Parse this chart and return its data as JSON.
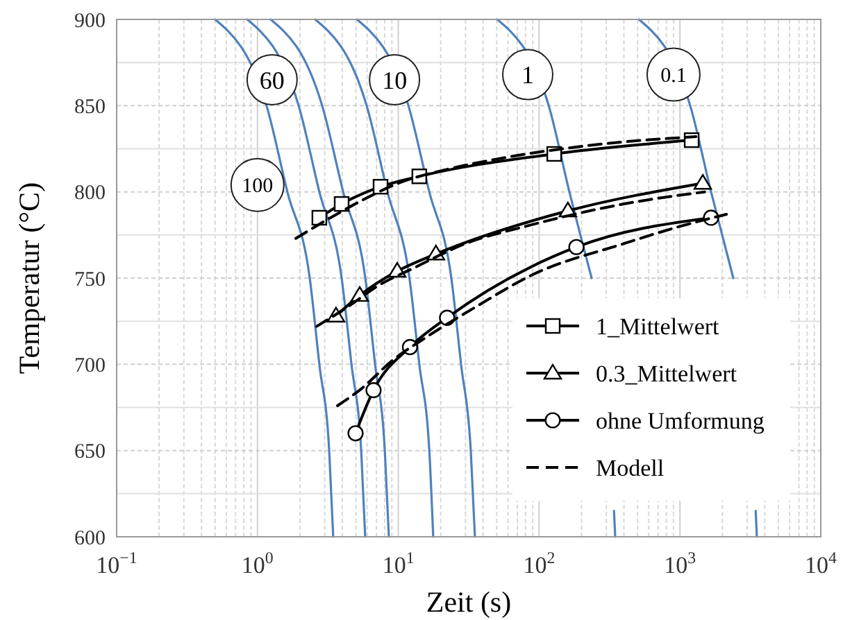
{
  "chart_data": {
    "type": "line",
    "xlabel": "Zeit (s)",
    "ylabel": "Temperatur (°C)",
    "log": "x",
    "xlim": [
      0.1,
      10000
    ],
    "ylim": [
      600,
      900
    ],
    "xticks": [
      {
        "value": 0.1,
        "label": "10$^{−1}$"
      },
      {
        "value": 1,
        "label": "10$^{0}$"
      },
      {
        "value": 10,
        "label": "10$^{1}$"
      },
      {
        "value": 100,
        "label": "10$^{2}$"
      },
      {
        "value": 1000,
        "label": "10$^{3}$"
      },
      {
        "value": 10000,
        "label": "10$^{4}$"
      }
    ],
    "yticks": [
      600,
      650,
      700,
      750,
      800,
      850,
      900
    ],
    "grid": true,
    "legend": "bottom right",
    "line_style": "solid",
    "marker": "none",
    "series": [
      {
        "color": "#4f81bd",
        "x": [
          0.5,
          1.16,
          1.63,
          2.35,
          2.75,
          3.23,
          3.45
        ],
        "values": [
          900,
          850,
          800,
          750,
          700,
          650,
          600
        ]
      },
      {
        "color": "#4f81bd",
        "x": [
          0.845,
          1.96,
          2.75,
          3.96,
          4.65,
          5.45,
          5.82
        ],
        "values": [
          900,
          850,
          800,
          750,
          700,
          650,
          600
        ]
      },
      {
        "color": "#4f81bd",
        "x": [
          1.24,
          2.88,
          4.06,
          5.83,
          6.84,
          8.02,
          8.57
        ],
        "values": [
          900,
          850,
          800,
          750,
          700,
          650,
          600
        ]
      },
      {
        "color": "#4f81bd",
        "x": [
          2.57,
          5.96,
          8.37,
          12.0,
          14.1,
          16.6,
          17.7
        ],
        "values": [
          900,
          850,
          800,
          750,
          700,
          650,
          600
        ]
      },
      {
        "color": "#4f81bd",
        "x": [
          5.08,
          11.8,
          16.6,
          23.8,
          27.9,
          32.7,
          35.0
        ],
        "values": [
          900,
          850,
          800,
          750,
          700,
          650,
          600
        ]
      },
      {
        "color": "#4f81bd",
        "x": [
          50.4,
          117,
          164,
          236,
          277,
          324,
          340,
          347
        ],
        "values": [
          900,
          850,
          800,
          750,
          null,
          null,
          615,
          600
        ]
      },
      {
        "color": "#4f81bd",
        "x": [
          511,
          1183,
          1663,
          2393,
          2805,
          3289,
          3450,
          3516
        ],
        "values": [
          900,
          850,
          800,
          750,
          null,
          null,
          615,
          600
        ]
      },
      {
        "name": "1_Mittelwert",
        "color": "#000000",
        "marker": "square",
        "x": [
          2.75,
          3.96,
          7.48,
          14.1,
          128,
          1211
        ],
        "values": [
          785,
          793,
          803,
          809,
          822,
          830
        ]
      },
      {
        "name": "0.3_Mittelwert",
        "color": "#000000",
        "marker": "triangle",
        "x": [
          3.61,
          5.32,
          9.82,
          18.5,
          160,
          1452
        ],
        "values": [
          728,
          740,
          754,
          764,
          789,
          805
        ]
      },
      {
        "name": "ohne Umformung",
        "color": "#000000",
        "marker": "circle",
        "x": [
          4.97,
          6.67,
          12.1,
          22.2,
          184,
          1663
        ],
        "values": [
          660,
          685,
          710,
          727,
          768,
          785
        ]
      },
      {
        "name": "Modell",
        "color": "#000000",
        "line_style": "dashed",
        "x": [
          1.87,
          3.3,
          5.5,
          10,
          22,
          50,
          300,
          1300
        ],
        "values": [
          773,
          785,
          795,
          805,
          813,
          819,
          828,
          832
        ]
      },
      {
        "color": "#000000",
        "line_style": "dashed",
        "x": [
          2.63,
          4.5,
          7,
          13,
          30,
          80,
          400,
          1500
        ],
        "values": [
          722,
          734,
          745,
          756,
          770,
          780,
          793,
          800
        ]
      },
      {
        "color": "#000000",
        "line_style": "dashed",
        "x": [
          3.7,
          5.5,
          9,
          16,
          35,
          90,
          400,
          1000,
          2140
        ],
        "values": [
          676,
          686,
          702,
          716,
          733,
          752,
          770,
          780,
          787
        ]
      }
    ],
    "annotations": [
      {
        "text": "60",
        "x": 1.27,
        "y": 865
      },
      {
        "text": "10",
        "x": 9.4,
        "y": 865
      },
      {
        "text": "1",
        "x": 83,
        "y": 868
      },
      {
        "text": "0.1",
        "x": 900,
        "y": 868
      },
      {
        "text": "100",
        "x": 1.0,
        "y": 804
      }
    ]
  }
}
